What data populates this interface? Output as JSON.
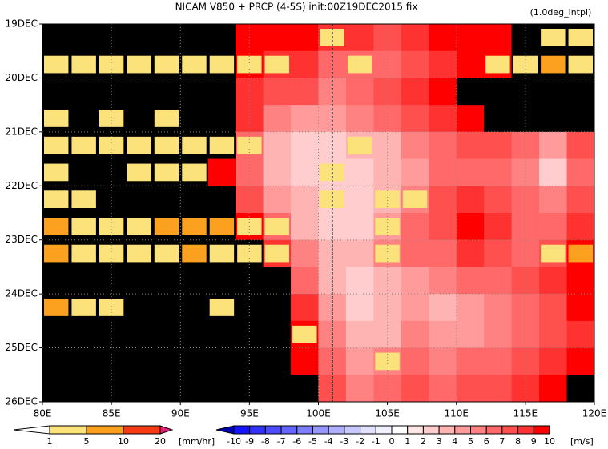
{
  "chart_data": {
    "type": "heatmap",
    "title": "NICAM  V850 + PRCP (4-5S) init:00Z19DEC2015 fix",
    "subtitle": "(1.0deg_intpl)",
    "x": [
      81,
      83,
      85,
      87,
      89,
      91,
      93,
      95,
      97,
      99,
      101,
      103,
      105,
      107,
      109,
      111,
      113,
      115,
      117,
      119
    ],
    "y": [
      0.25,
      0.75,
      1.25,
      1.75,
      2.25,
      2.75,
      3.25,
      3.75,
      4.25,
      4.75,
      5.25,
      5.75,
      6.25,
      6.75
    ],
    "cell_width": 2,
    "cell_height": 0.5,
    "xlim": [
      80,
      120
    ],
    "ylim": [
      0,
      7
    ],
    "xticks": [
      {
        "value": 80,
        "label": "80E"
      },
      {
        "value": 85,
        "label": "85E"
      },
      {
        "value": 90,
        "label": "90E"
      },
      {
        "value": 95,
        "label": "95E"
      },
      {
        "value": 100,
        "label": "100E"
      },
      {
        "value": 105,
        "label": "105E"
      },
      {
        "value": 110,
        "label": "110E"
      },
      {
        "value": 115,
        "label": "115E"
      },
      {
        "value": 120,
        "label": "120E"
      }
    ],
    "yticks": [
      {
        "value": 0,
        "label": "19DEC"
      },
      {
        "value": 1,
        "label": "20DEC"
      },
      {
        "value": 2,
        "label": "21DEC"
      },
      {
        "value": 3,
        "label": "22DEC"
      },
      {
        "value": 4,
        "label": "23DEC"
      },
      {
        "value": 5,
        "label": "24DEC"
      },
      {
        "value": 6,
        "label": "25DEC"
      },
      {
        "value": 7,
        "label": "26DEC"
      }
    ],
    "grid": true,
    "vline": 101,
    "wind": [
      [
        10,
        10,
        10,
        10,
        10,
        10,
        10,
        9,
        9,
        9,
        8,
        8,
        7,
        8,
        9,
        9,
        9,
        10,
        10,
        10
      ],
      [
        10,
        10,
        10,
        10,
        10,
        10,
        10,
        9,
        8,
        8,
        6,
        6,
        6,
        7,
        8,
        9,
        9,
        10,
        10,
        10
      ],
      [
        10,
        10,
        10,
        10,
        10,
        10,
        10,
        8,
        7,
        7,
        5,
        6,
        7,
        8,
        9,
        10,
        10,
        10,
        10,
        10
      ],
      [
        10,
        10,
        10,
        10,
        10,
        10,
        10,
        8,
        5,
        4,
        4,
        5,
        6,
        7,
        8,
        9,
        10,
        10,
        10,
        10
      ],
      [
        10,
        10,
        10,
        10,
        10,
        10,
        10,
        6,
        3,
        2,
        2,
        3,
        3,
        5,
        6,
        7,
        7,
        6,
        4,
        7
      ],
      [
        10,
        10,
        10,
        10,
        10,
        10,
        9,
        6,
        3,
        2,
        2,
        2,
        3,
        4,
        6,
        6,
        6,
        5,
        2,
        6
      ],
      [
        10,
        10,
        10,
        10,
        10,
        10,
        10,
        7,
        4,
        3,
        2,
        2,
        3,
        5,
        7,
        8,
        7,
        6,
        5,
        7
      ],
      [
        10,
        10,
        10,
        10,
        10,
        10,
        10,
        9,
        6,
        3,
        2,
        2,
        4,
        6,
        7,
        9,
        8,
        6,
        6,
        8
      ],
      [
        10,
        10,
        10,
        10,
        10,
        10,
        10,
        10,
        8,
        5,
        3,
        3,
        5,
        6,
        6,
        8,
        7,
        6,
        7,
        9
      ],
      [
        10,
        10,
        10,
        10,
        10,
        10,
        10,
        10,
        10,
        6,
        3,
        2,
        3,
        4,
        5,
        6,
        6,
        7,
        8,
        9
      ],
      [
        10,
        10,
        10,
        10,
        10,
        10,
        10,
        10,
        10,
        8,
        4,
        2,
        3,
        4,
        3,
        4,
        5,
        6,
        7,
        9
      ],
      [
        10,
        10,
        10,
        10,
        10,
        10,
        10,
        10,
        10,
        9,
        5,
        3,
        3,
        5,
        4,
        4,
        5,
        6,
        7,
        8
      ],
      [
        10,
        10,
        10,
        10,
        10,
        10,
        10,
        10,
        10,
        9,
        6,
        4,
        5,
        6,
        5,
        6,
        6,
        7,
        8,
        9
      ],
      [
        10,
        10,
        10,
        10,
        10,
        10,
        10,
        10,
        10,
        10,
        7,
        5,
        6,
        7,
        6,
        7,
        7,
        8,
        9,
        10
      ]
    ],
    "precip": [
      [
        0,
        0,
        0,
        0,
        0,
        0,
        0,
        0,
        0,
        0,
        3,
        0,
        0,
        0,
        0,
        0,
        0,
        0,
        3,
        3
      ],
      [
        3,
        3,
        3,
        3,
        3,
        3,
        3,
        3,
        3,
        0,
        0,
        3,
        0,
        0,
        0,
        0,
        3,
        3,
        6,
        3
      ],
      [
        0,
        0,
        0,
        0,
        0,
        0,
        0,
        0,
        0,
        0,
        0,
        0,
        0,
        0,
        0,
        0,
        0,
        0,
        0,
        0
      ],
      [
        3,
        0,
        3,
        0,
        3,
        0,
        0,
        0,
        0,
        0,
        0,
        0,
        0,
        0,
        0,
        0,
        0,
        0,
        0,
        0
      ],
      [
        3,
        3,
        3,
        3,
        3,
        3,
        3,
        3,
        0,
        0,
        0,
        3,
        0,
        0,
        0,
        0,
        0,
        0,
        0,
        0
      ],
      [
        3,
        0,
        0,
        3,
        3,
        3,
        0,
        0,
        0,
        0,
        3,
        0,
        0,
        0,
        0,
        0,
        0,
        0,
        0,
        0
      ],
      [
        3,
        3,
        0,
        0,
        0,
        0,
        0,
        0,
        0,
        0,
        3,
        0,
        3,
        3,
        0,
        0,
        0,
        0,
        0,
        0
      ],
      [
        6,
        3,
        3,
        3,
        6,
        6,
        6,
        3,
        3,
        0,
        0,
        0,
        3,
        0,
        0,
        0,
        0,
        0,
        0,
        0
      ],
      [
        6,
        3,
        3,
        3,
        3,
        6,
        3,
        3,
        3,
        0,
        0,
        0,
        3,
        0,
        0,
        0,
        0,
        0,
        3,
        6
      ],
      [
        0,
        0,
        0,
        0,
        0,
        0,
        0,
        0,
        0,
        0,
        0,
        0,
        0,
        0,
        0,
        0,
        0,
        0,
        0,
        0
      ],
      [
        6,
        3,
        3,
        0,
        0,
        0,
        3,
        0,
        0,
        0,
        0,
        0,
        0,
        0,
        0,
        0,
        0,
        0,
        0,
        0
      ],
      [
        0,
        0,
        0,
        0,
        0,
        0,
        0,
        0,
        0,
        3,
        0,
        0,
        0,
        0,
        0,
        0,
        0,
        0,
        0,
        0
      ],
      [
        0,
        0,
        0,
        0,
        0,
        0,
        0,
        0,
        0,
        0,
        0,
        0,
        3,
        0,
        0,
        0,
        0,
        0,
        0,
        0
      ],
      [
        0,
        0,
        0,
        0,
        0,
        0,
        0,
        0,
        0,
        0,
        0,
        0,
        0,
        0,
        0,
        0,
        0,
        0,
        0,
        0
      ]
    ],
    "precip_colorbar": {
      "levels": [
        1,
        5,
        10,
        20
      ],
      "colors": [
        "#ffffff",
        "#fce27a",
        "#fca020",
        "#f53a14",
        "#e0207a"
      ],
      "unit": "[mm/hr]"
    },
    "wind_colorbar": {
      "levels": [
        -10,
        -9,
        -8,
        -7,
        -6,
        -5,
        -4,
        -3,
        -2,
        -1,
        0,
        1,
        2,
        3,
        4,
        5,
        6,
        7,
        8,
        9,
        10
      ],
      "colors": [
        "#0000b4",
        "#1414ff",
        "#3232ff",
        "#4b4bff",
        "#6464ff",
        "#7d7dff",
        "#9696ff",
        "#afafff",
        "#c8c8ff",
        "#e1e1ff",
        "#f0f0ff",
        "#ffffff",
        "#ffe6e6",
        "#ffcdcd",
        "#ffb4b4",
        "#ff9b9b",
        "#ff8282",
        "#ff6969",
        "#ff5050",
        "#ff3232",
        "#ff0000"
      ],
      "unit": "[m/s]"
    }
  }
}
